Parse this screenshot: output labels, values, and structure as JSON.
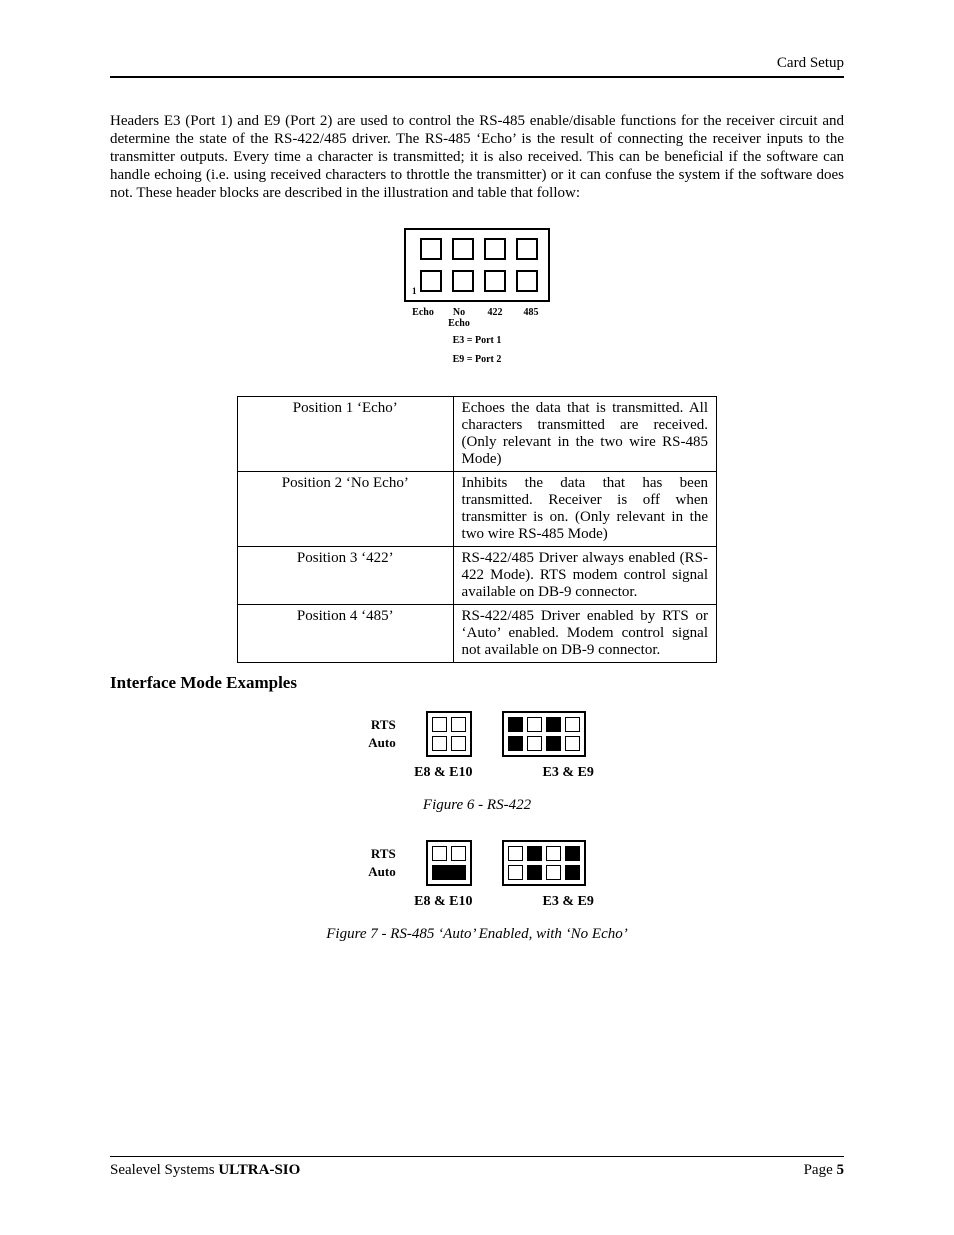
{
  "header": {
    "section": "Card Setup"
  },
  "paragraph": "Headers E3 (Port 1) and E9 (Port 2) are used to control the RS-485 enable/disable functions for the receiver circuit and determine the state of the RS-422/485 driver. The RS-485 ‘Echo’ is the result of connecting the receiver inputs to the transmitter outputs. Every time a character is transmitted; it is also received. This can be beneficial if the software can handle echoing (i.e. using received characters to throttle the transmitter) or it can confuse the system if the software does not. These header blocks are described in the illustration and table that follow:",
  "top_block": {
    "rows": 2,
    "cols": 4,
    "filled": [],
    "col_labels": [
      "Echo",
      "No\nEcho",
      "422",
      "485"
    ],
    "sub1": "E3 = Port 1",
    "sub2": "E9 = Port 2"
  },
  "table": {
    "rows": [
      {
        "left": "Position 1 ‘Echo’",
        "right": "Echoes the data that is transmitted. All characters transmitted are received. (Only relevant in the two wire RS-485 Mode)"
      },
      {
        "left": "Position 2 ‘No Echo’",
        "right": "Inhibits the data that has been transmitted. Receiver is off when transmitter is on. (Only relevant in the two wire RS-485 Mode)"
      },
      {
        "left": "Position 3 ‘422’",
        "right": "RS-422/485 Driver always enabled (RS-422 Mode). RTS modem control signal available on DB-9 connector."
      },
      {
        "left": "Position 4 ‘485’",
        "right": "RS-422/485 Driver enabled by RTS or ‘Auto’ enabled. Modem control signal not available on DB-9 connector."
      }
    ]
  },
  "section_heading": "Interface Mode Examples",
  "row_labels": {
    "top": "RTS",
    "bottom": "Auto"
  },
  "figure6": {
    "caption": "Figure 6 - RS-422",
    "left": {
      "layout": "g2x2",
      "cells": [
        {
          "f": 0
        },
        {
          "f": 0
        },
        {
          "f": 0
        },
        {
          "f": 0
        }
      ],
      "label": "E8 & E10"
    },
    "right": {
      "layout": "g2x4",
      "cells": [
        {
          "f": 1
        },
        {
          "f": 0
        },
        {
          "f": 1
        },
        {
          "f": 0
        },
        {
          "f": 1
        },
        {
          "f": 0
        },
        {
          "f": 1
        },
        {
          "f": 0
        }
      ],
      "label": "E3 & E9"
    }
  },
  "figure7": {
    "caption": "Figure 7 - RS-485 ‘Auto’ Enabled, with ‘No Echo’",
    "left": {
      "layout": "g2x2",
      "cells": [
        {
          "f": 0
        },
        {
          "f": 0
        },
        "strap"
      ],
      "label": "E8 & E10"
    },
    "right": {
      "layout": "g2x4",
      "cells": [
        {
          "f": 0
        },
        {
          "f": 1
        },
        {
          "f": 0
        },
        {
          "f": 1
        },
        {
          "f": 0
        },
        {
          "f": 1
        },
        {
          "f": 0
        },
        {
          "f": 1
        }
      ],
      "label": "E3 & E9"
    }
  },
  "footer": {
    "left_plain": "Sealevel Systems ",
    "left_bold": "ULTRA-SIO",
    "right_label": "Page ",
    "page_no": "5"
  }
}
